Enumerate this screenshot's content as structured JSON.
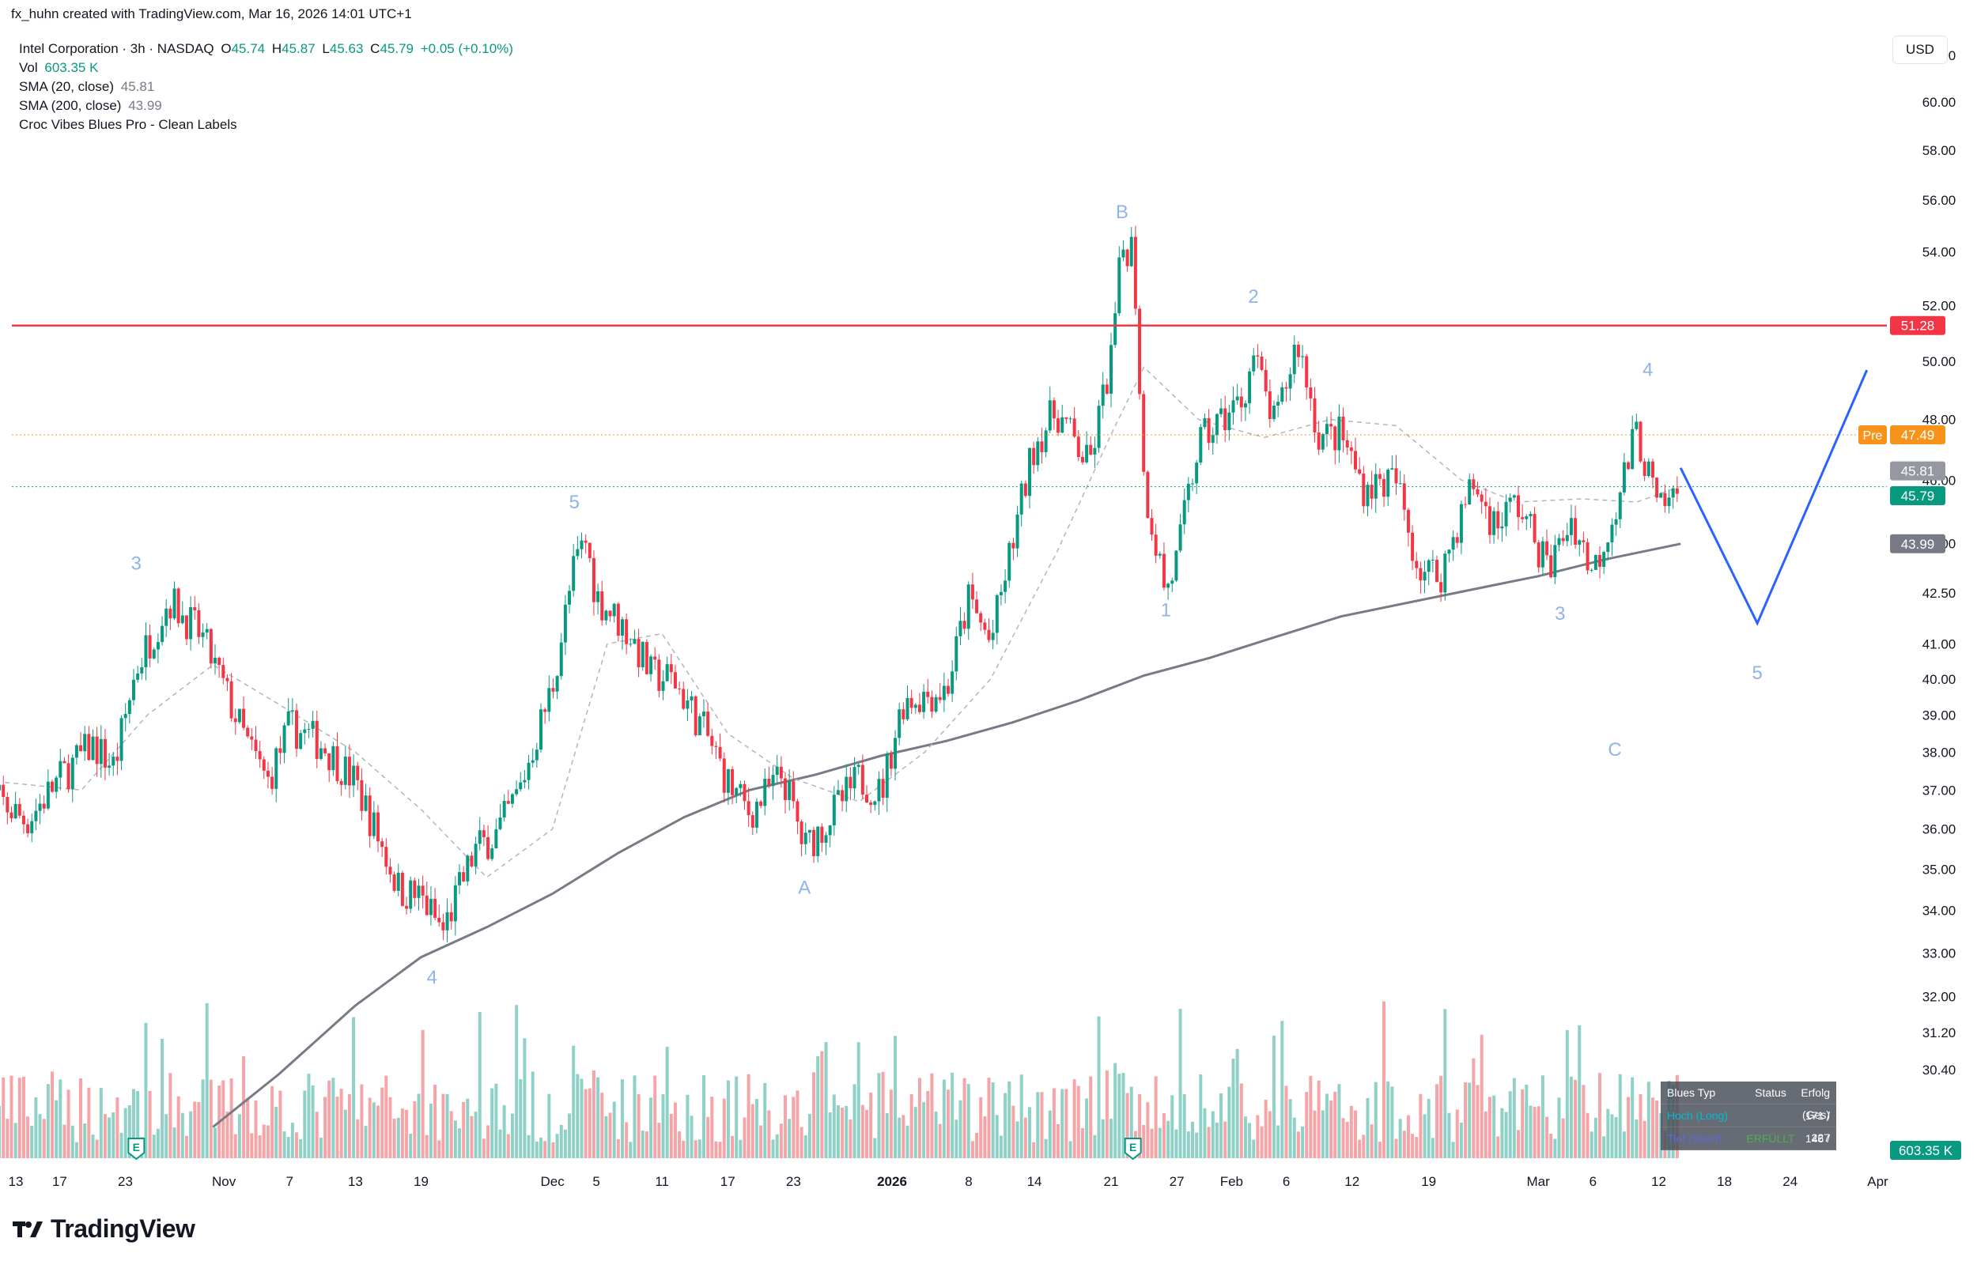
{
  "header": {
    "creator_line": "fx_huhn created with TradingView.com, Mar 16, 2026 14:01 UTC+1"
  },
  "legend": {
    "symbol": "Intel Corporation · 3h · NASDAQ",
    "open_label": "O",
    "open": "45.74",
    "high_label": "H",
    "high": "45.87",
    "low_label": "L",
    "low": "45.63",
    "close_label": "C",
    "close": "45.79",
    "change": "+0.05 (+0.10%)",
    "vol_label": "Vol",
    "vol": "603.35 K",
    "sma20_label": "SMA (20, close)",
    "sma20": "45.81",
    "sma200_label": "SMA (200, close)",
    "sma200": "43.99",
    "indicator_label": "Croc Vibes Blues Pro - Clean Labels"
  },
  "currency_button": "USD",
  "brand": "TradingView",
  "signal_table": {
    "headers": [
      "Blues Typ",
      "Status",
      "Erfolg (Ges)"
    ],
    "rows": [
      {
        "typ": "Hoch (Long)",
        "status": "",
        "erfolg": "171 / 227"
      },
      {
        "typ": "Tief (Short)",
        "status": "ERFÜLLT",
        "erfolg": "146 / 195"
      }
    ]
  },
  "price_badges": {
    "resistance": "51.28",
    "pre_label": "Pre",
    "pre": "47.49",
    "sma20": "45.81",
    "last": "45.79",
    "sma200": "43.99",
    "volume": "603.35 K"
  },
  "colors": {
    "up": "#089981",
    "down": "#f23645",
    "up_vol": "#8fd1c6",
    "down_vol": "#f5a4a8",
    "resistance": "#f23645",
    "pre": "#f7931a",
    "projection": "#2962ff",
    "sma200": "#787b86",
    "wave_label": "#8fb4e8"
  },
  "chart_data": {
    "type": "candlestick",
    "symbol": "Intel Corporation",
    "interval": "3h",
    "exchange": "NASDAQ",
    "price_scale": "log",
    "price_ticks": [
      "30.40",
      "31.20",
      "32.00",
      "33.00",
      "34.00",
      "35.00",
      "36.00",
      "37.00",
      "38.00",
      "39.00",
      "40.00",
      "41.00",
      "42.50",
      "44.00",
      "46.00",
      "48.00",
      "50.00",
      "52.00",
      "54.00",
      "56.00",
      "58.00",
      "60.00",
      "62.00"
    ],
    "time_ticks": [
      {
        "label": "13",
        "date": "2025-10-13",
        "bold": false
      },
      {
        "label": "17",
        "date": "2025-10-17",
        "bold": false
      },
      {
        "label": "23",
        "date": "2025-10-23",
        "bold": false
      },
      {
        "label": "Nov",
        "date": "2025-11-01",
        "bold": false
      },
      {
        "label": "7",
        "date": "2025-11-07",
        "bold": false
      },
      {
        "label": "13",
        "date": "2025-11-13",
        "bold": false
      },
      {
        "label": "19",
        "date": "2025-11-19",
        "bold": false
      },
      {
        "label": "Dec",
        "date": "2025-12-01",
        "bold": false
      },
      {
        "label": "5",
        "date": "2025-12-05",
        "bold": false
      },
      {
        "label": "11",
        "date": "2025-12-11",
        "bold": false
      },
      {
        "label": "17",
        "date": "2025-12-17",
        "bold": false
      },
      {
        "label": "23",
        "date": "2025-12-23",
        "bold": false
      },
      {
        "label": "2026",
        "date": "2026-01-01",
        "bold": true
      },
      {
        "label": "8",
        "date": "2026-01-08",
        "bold": false
      },
      {
        "label": "14",
        "date": "2026-01-14",
        "bold": false
      },
      {
        "label": "21",
        "date": "2026-01-21",
        "bold": false
      },
      {
        "label": "27",
        "date": "2026-01-27",
        "bold": false
      },
      {
        "label": "Feb",
        "date": "2026-02-01",
        "bold": false
      },
      {
        "label": "6",
        "date": "2026-02-06",
        "bold": false
      },
      {
        "label": "12",
        "date": "2026-02-12",
        "bold": false
      },
      {
        "label": "19",
        "date": "2026-02-19",
        "bold": false
      },
      {
        "label": "Mar",
        "date": "2026-03-01",
        "bold": false
      },
      {
        "label": "6",
        "date": "2026-03-06",
        "bold": false
      },
      {
        "label": "12",
        "date": "2026-03-12",
        "bold": false
      },
      {
        "label": "18",
        "date": "2026-03-18",
        "bold": false
      },
      {
        "label": "24",
        "date": "2026-03-24",
        "bold": false
      },
      {
        "label": "Apr",
        "date": "2026-04-01",
        "bold": false
      }
    ],
    "price_path": [
      {
        "date": "2025-10-10",
        "close": 37.0
      },
      {
        "date": "2025-10-14",
        "close": 36.2
      },
      {
        "date": "2025-10-17",
        "close": 37.3
      },
      {
        "date": "2025-10-20",
        "close": 38.2
      },
      {
        "date": "2025-10-22",
        "close": 37.6
      },
      {
        "date": "2025-10-24",
        "close": 40.3
      },
      {
        "date": "2025-10-27",
        "close": 42.3
      },
      {
        "date": "2025-10-30",
        "close": 41.2
      },
      {
        "date": "2025-11-03",
        "close": 38.3
      },
      {
        "date": "2025-11-05",
        "close": 37.2
      },
      {
        "date": "2025-11-07",
        "close": 38.7
      },
      {
        "date": "2025-11-10",
        "close": 38.2
      },
      {
        "date": "2025-11-13",
        "close": 37.2
      },
      {
        "date": "2025-11-17",
        "close": 34.5
      },
      {
        "date": "2025-11-19",
        "close": 34.3
      },
      {
        "date": "2025-11-21",
        "close": 33.5
      },
      {
        "date": "2025-11-24",
        "close": 35.5
      },
      {
        "date": "2025-11-26",
        "close": 35.9
      },
      {
        "date": "2025-11-28",
        "close": 37.0
      },
      {
        "date": "2025-12-01",
        "close": 39.8
      },
      {
        "date": "2025-12-03",
        "close": 43.3
      },
      {
        "date": "2025-12-04",
        "close": 44.1
      },
      {
        "date": "2025-12-05",
        "close": 42.4
      },
      {
        "date": "2025-12-08",
        "close": 41.3
      },
      {
        "date": "2025-12-10",
        "close": 40.1
      },
      {
        "date": "2025-12-12",
        "close": 40.0
      },
      {
        "date": "2025-12-15",
        "close": 38.5
      },
      {
        "date": "2025-12-17",
        "close": 37.2
      },
      {
        "date": "2025-12-19",
        "close": 36.4
      },
      {
        "date": "2025-12-22",
        "close": 37.4
      },
      {
        "date": "2025-12-24",
        "close": 35.5
      },
      {
        "date": "2025-12-26",
        "close": 36.2
      },
      {
        "date": "2025-12-29",
        "close": 37.3
      },
      {
        "date": "2025-12-31",
        "close": 36.9
      },
      {
        "date": "2026-01-02",
        "close": 39.4
      },
      {
        "date": "2026-01-06",
        "close": 39.7
      },
      {
        "date": "2026-01-08",
        "close": 42.3
      },
      {
        "date": "2026-01-10",
        "close": 41.0
      },
      {
        "date": "2026-01-12",
        "close": 44.0
      },
      {
        "date": "2026-01-14",
        "close": 47.2
      },
      {
        "date": "2026-01-16",
        "close": 48.3
      },
      {
        "date": "2026-01-19",
        "close": 46.4
      },
      {
        "date": "2026-01-21",
        "close": 50.1
      },
      {
        "date": "2026-01-22",
        "close": 54.1
      },
      {
        "date": "2026-01-23",
        "close": 54.3
      },
      {
        "date": "2026-01-24",
        "close": 45.9
      },
      {
        "date": "2026-01-26",
        "close": 42.5
      },
      {
        "date": "2026-01-27",
        "close": 43.5
      },
      {
        "date": "2026-01-29",
        "close": 47.2
      },
      {
        "date": "2026-02-02",
        "close": 48.7
      },
      {
        "date": "2026-02-03",
        "close": 50.2
      },
      {
        "date": "2026-02-05",
        "close": 47.7
      },
      {
        "date": "2026-02-07",
        "close": 50.8
      },
      {
        "date": "2026-02-09",
        "close": 47.4
      },
      {
        "date": "2026-02-11",
        "close": 47.5
      },
      {
        "date": "2026-02-13",
        "close": 45.8
      },
      {
        "date": "2026-02-16",
        "close": 46.0
      },
      {
        "date": "2026-02-18",
        "close": 43.3
      },
      {
        "date": "2026-02-20",
        "close": 43.0
      },
      {
        "date": "2026-02-23",
        "close": 45.9
      },
      {
        "date": "2026-02-25",
        "close": 44.6
      },
      {
        "date": "2026-02-27",
        "close": 45.3
      },
      {
        "date": "2026-03-02",
        "close": 43.2
      },
      {
        "date": "2026-03-04",
        "close": 44.8
      },
      {
        "date": "2026-03-06",
        "close": 43.1
      },
      {
        "date": "2026-03-08",
        "close": 45.1
      },
      {
        "date": "2026-03-10",
        "close": 47.6
      },
      {
        "date": "2026-03-12",
        "close": 44.9
      },
      {
        "date": "2026-03-14",
        "close": 45.8
      }
    ],
    "sma20_path": [
      {
        "date": "2025-10-12",
        "value": 37.2
      },
      {
        "date": "2025-10-19",
        "value": 37.0
      },
      {
        "date": "2025-10-25",
        "value": 39.0
      },
      {
        "date": "2025-10-31",
        "value": 40.4
      },
      {
        "date": "2025-11-06",
        "value": 39.3
      },
      {
        "date": "2025-11-13",
        "value": 38.0
      },
      {
        "date": "2025-11-19",
        "value": 36.5
      },
      {
        "date": "2025-11-25",
        "value": 34.8
      },
      {
        "date": "2025-12-01",
        "value": 36.0
      },
      {
        "date": "2025-12-06",
        "value": 41.0
      },
      {
        "date": "2025-12-11",
        "value": 41.3
      },
      {
        "date": "2025-12-17",
        "value": 38.5
      },
      {
        "date": "2025-12-23",
        "value": 37.3
      },
      {
        "date": "2025-12-29",
        "value": 36.7
      },
      {
        "date": "2026-01-04",
        "value": 38.0
      },
      {
        "date": "2026-01-10",
        "value": 40.0
      },
      {
        "date": "2026-01-16",
        "value": 43.7
      },
      {
        "date": "2026-01-21",
        "value": 47.5
      },
      {
        "date": "2026-01-24",
        "value": 49.8
      },
      {
        "date": "2026-01-29",
        "value": 48.0
      },
      {
        "date": "2026-02-04",
        "value": 47.4
      },
      {
        "date": "2026-02-10",
        "value": 48.0
      },
      {
        "date": "2026-02-16",
        "value": 47.8
      },
      {
        "date": "2026-02-22",
        "value": 46.0
      },
      {
        "date": "2026-02-27",
        "value": 45.3
      },
      {
        "date": "2026-03-05",
        "value": 45.4
      },
      {
        "date": "2026-03-10",
        "value": 45.3
      },
      {
        "date": "2026-03-14",
        "value": 45.8
      }
    ],
    "sma200_path": [
      {
        "date": "2025-10-31",
        "value": 29.2
      },
      {
        "date": "2025-11-06",
        "value": 30.3
      },
      {
        "date": "2025-11-13",
        "value": 31.8
      },
      {
        "date": "2025-11-19",
        "value": 32.9
      },
      {
        "date": "2025-11-25",
        "value": 33.6
      },
      {
        "date": "2025-12-01",
        "value": 34.4
      },
      {
        "date": "2025-12-07",
        "value": 35.4
      },
      {
        "date": "2025-12-13",
        "value": 36.3
      },
      {
        "date": "2025-12-19",
        "value": 37.0
      },
      {
        "date": "2025-12-25",
        "value": 37.4
      },
      {
        "date": "2025-12-31",
        "value": 37.9
      },
      {
        "date": "2026-01-06",
        "value": 38.3
      },
      {
        "date": "2026-01-12",
        "value": 38.8
      },
      {
        "date": "2026-01-18",
        "value": 39.4
      },
      {
        "date": "2026-01-24",
        "value": 40.1
      },
      {
        "date": "2026-01-30",
        "value": 40.6
      },
      {
        "date": "2026-02-05",
        "value": 41.2
      },
      {
        "date": "2026-02-11",
        "value": 41.8
      },
      {
        "date": "2026-02-17",
        "value": 42.2
      },
      {
        "date": "2026-02-23",
        "value": 42.6
      },
      {
        "date": "2026-03-01",
        "value": 43.0
      },
      {
        "date": "2026-03-07",
        "value": 43.5
      },
      {
        "date": "2026-03-14",
        "value": 43.99
      }
    ],
    "resistance": 51.28,
    "premarket": 47.49,
    "projection": [
      {
        "date": "2026-03-14",
        "price": 46.4
      },
      {
        "date": "2026-03-21",
        "price": 41.6
      },
      {
        "date": "2026-03-31",
        "price": 49.7
      }
    ],
    "wave_labels": [
      {
        "text": "3",
        "date": "2025-10-24",
        "price": 43.2
      },
      {
        "text": "4",
        "date": "2025-11-20",
        "price": 32.3
      },
      {
        "text": "5",
        "date": "2025-12-03",
        "price": 45.1
      },
      {
        "text": "A",
        "date": "2025-12-24",
        "price": 34.4
      },
      {
        "text": "B",
        "date": "2026-01-22",
        "price": 55.3
      },
      {
        "text": "1",
        "date": "2026-01-26",
        "price": 41.8
      },
      {
        "text": "2",
        "date": "2026-02-03",
        "price": 52.1
      },
      {
        "text": "3",
        "date": "2026-03-03",
        "price": 41.7
      },
      {
        "text": "4",
        "date": "2026-03-11",
        "price": 49.5
      },
      {
        "text": "C",
        "date": "2026-03-08",
        "price": 37.9
      },
      {
        "text": "5",
        "date": "2026-03-21",
        "price": 40.0
      }
    ],
    "earnings_markers": [
      {
        "label": "E",
        "date": "2025-10-24"
      },
      {
        "label": "E",
        "date": "2026-01-23"
      }
    ]
  }
}
